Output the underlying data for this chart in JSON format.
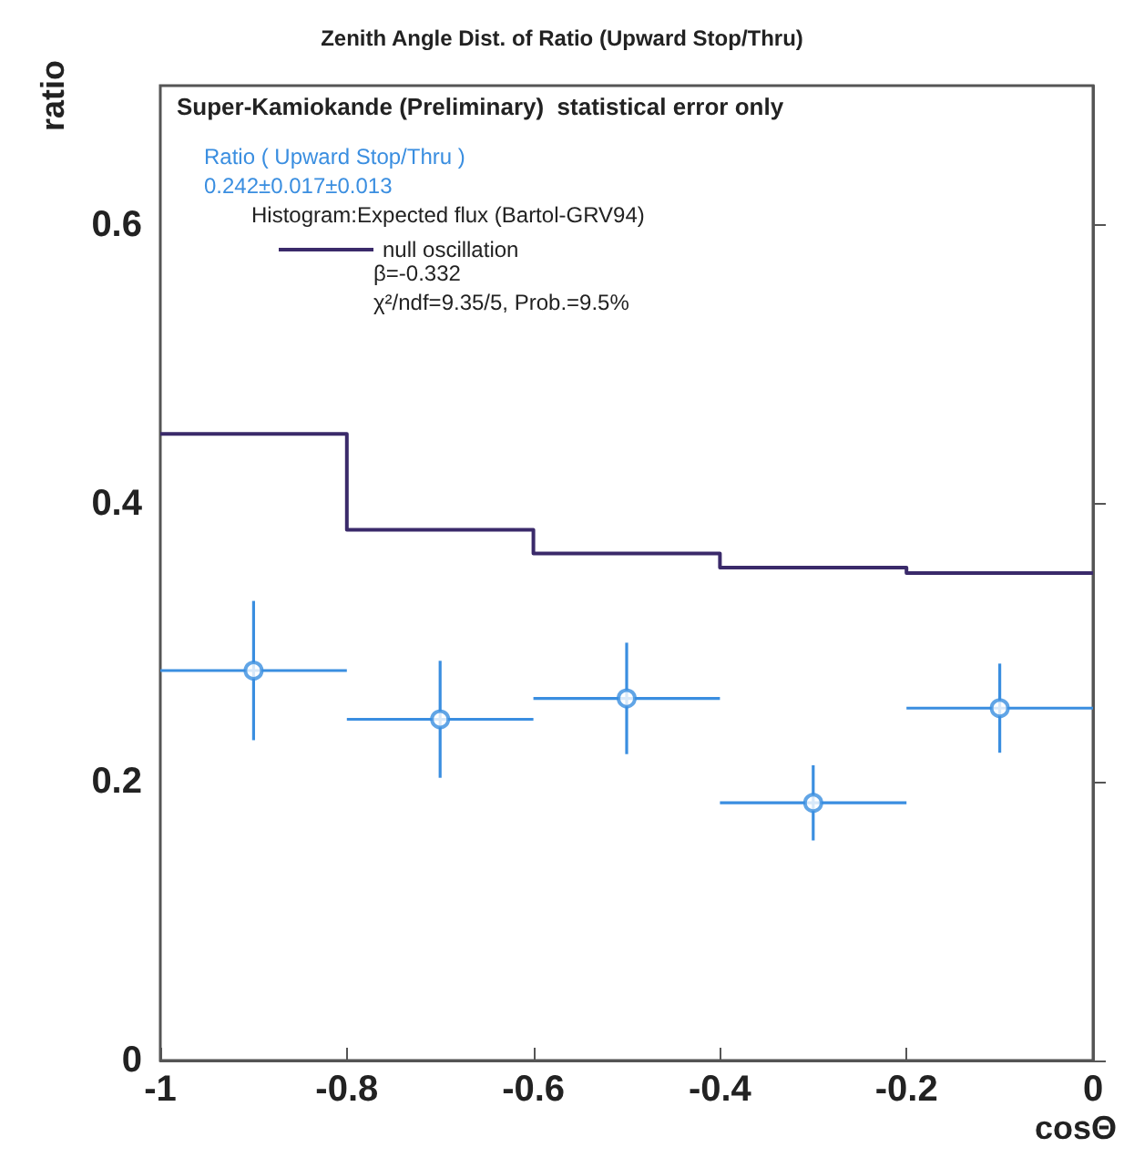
{
  "chart_data": {
    "type": "scatter",
    "title": "Zenith Angle Dist. of Ratio (Upward Stop/Thru)",
    "xlabel": "cosΘ",
    "ylabel": "ratio",
    "annotations": [
      "Super-Kamiokande (Preliminary)  statistical error only",
      "0.242±0.017±0.013",
      "Histogram:Expected flux (Bartol-GRV94)",
      "β=-0.332",
      "χ²/ndf=9.35/5, Prob.=9.5%"
    ],
    "series": [
      {
        "name": "Ratio ( Upward Stop/Thru )",
        "color": "#3a8ee0",
        "x": [
          -0.9,
          -0.7,
          -0.5,
          -0.3,
          -0.1
        ],
        "values": [
          0.28,
          0.245,
          0.26,
          0.185,
          0.253
        ],
        "errors": [
          0.05,
          0.042,
          0.04,
          0.027,
          0.032
        ],
        "xerrors": [
          0.1,
          0.1,
          0.1,
          0.1,
          0.1
        ]
      },
      {
        "name": "null oscillation",
        "type": "histogram",
        "color": "#3a2a6a",
        "bins": [
          -1,
          -0.8,
          -0.6,
          -0.4,
          -0.2,
          0
        ],
        "values": [
          0.45,
          0.381,
          0.364,
          0.354,
          0.35
        ]
      }
    ],
    "xlim": [
      -1,
      0
    ],
    "xticks": [
      -1,
      -0.8,
      -0.6,
      -0.4,
      -0.2,
      0
    ],
    "ylim": [
      0,
      0.7
    ],
    "yticks": [
      0,
      0.2,
      0.4,
      0.6
    ],
    "marker": "circle",
    "legend": "top left",
    "grid": false
  }
}
